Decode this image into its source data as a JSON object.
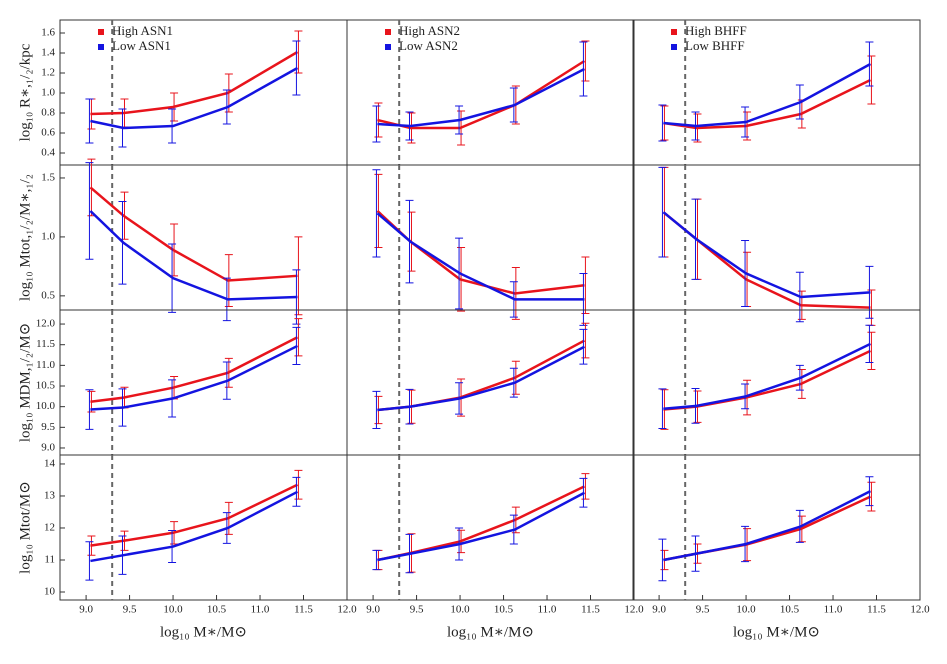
{
  "chart_data": [
    {
      "type": "line",
      "legend": "upper left",
      "xlim": [
        8.7,
        12.0
      ],
      "ylim": [
        0.28,
        1.73
      ],
      "vline": 9.3,
      "ylabel": "log₁₀ R∗,₁/₂/kpc",
      "yticks": [
        0.4,
        0.6,
        0.8,
        {
          "value": 1,
          "label": "1.0"
        },
        1.2,
        1.4,
        1.6
      ],
      "x": [
        9.05,
        9.43,
        10.0,
        10.63,
        11.43
      ],
      "series": [
        {
          "name": "High ASN1",
          "color": "#e8141c",
          "values": [
            0.79,
            0.8,
            0.86,
            1.0,
            1.41
          ],
          "errors": [
            0.15,
            0.14,
            0.14,
            0.19,
            0.21
          ]
        },
        {
          "name": "Low ASN1",
          "color": "#1414e0",
          "values": [
            0.72,
            0.65,
            0.67,
            0.86,
            1.25
          ],
          "errors": [
            0.22,
            0.19,
            0.17,
            0.17,
            0.27
          ]
        }
      ]
    },
    {
      "type": "line",
      "legend": "upper left",
      "xlim": [
        8.7,
        12.0
      ],
      "ylim": [
        0.28,
        1.73
      ],
      "vline": 9.3,
      "x": [
        9.05,
        9.43,
        10.0,
        10.63,
        11.43
      ],
      "series": [
        {
          "name": "High ASN2",
          "color": "#e8141c",
          "values": [
            0.73,
            0.65,
            0.65,
            0.88,
            1.32
          ],
          "errors": [
            0.17,
            0.15,
            0.17,
            0.19,
            0.2
          ]
        },
        {
          "name": "Low ASN2",
          "color": "#1414e0",
          "values": [
            0.69,
            0.67,
            0.73,
            0.88,
            1.24
          ],
          "errors": [
            0.18,
            0.14,
            0.14,
            0.17,
            0.27
          ]
        }
      ]
    },
    {
      "type": "line",
      "legend": "upper left",
      "xlim": [
        8.7,
        12.0
      ],
      "ylim": [
        0.28,
        1.73
      ],
      "vline": 9.3,
      "x": [
        9.05,
        9.43,
        10.0,
        10.63,
        11.43
      ],
      "series": [
        {
          "name": "High BHFF",
          "color": "#e8141c",
          "values": [
            0.7,
            0.65,
            0.67,
            0.79,
            1.13
          ],
          "errors": [
            0.17,
            0.14,
            0.14,
            0.14,
            0.24
          ]
        },
        {
          "name": "Low BHFF",
          "color": "#1414e0",
          "values": [
            0.7,
            0.67,
            0.71,
            0.91,
            1.29
          ],
          "errors": [
            0.18,
            0.14,
            0.15,
            0.17,
            0.22
          ]
        }
      ]
    },
    {
      "type": "line",
      "xlim": [
        8.7,
        12.0
      ],
      "ylim": [
        0.38,
        1.61
      ],
      "vline": 9.3,
      "ylabel": "log₁₀ Mtot,₁/₂/M∗,₁/₂",
      "yticks": [
        0.5,
        {
          "value": 1,
          "label": "1.0"
        },
        1.5
      ],
      "x": [
        9.05,
        9.43,
        10.0,
        10.63,
        11.43
      ],
      "series": [
        {
          "color": "#e8141c",
          "values": [
            1.42,
            1.18,
            0.89,
            0.63,
            0.67
          ],
          "errors": [
            0.24,
            0.2,
            0.22,
            0.22,
            0.33
          ]
        },
        {
          "color": "#1414e0",
          "values": [
            1.22,
            0.95,
            0.65,
            0.47,
            0.49
          ],
          "errors": [
            0.41,
            0.35,
            0.29,
            0.18,
            0.23
          ]
        }
      ]
    },
    {
      "type": "line",
      "xlim": [
        8.7,
        12.0
      ],
      "ylim": [
        0.38,
        1.61
      ],
      "vline": 9.3,
      "x": [
        9.05,
        9.43,
        10.0,
        10.63,
        11.43
      ],
      "series": [
        {
          "color": "#e8141c",
          "values": [
            1.22,
            0.96,
            0.64,
            0.52,
            0.59
          ],
          "errors": [
            0.31,
            0.25,
            0.27,
            0.22,
            0.24
          ]
        },
        {
          "color": "#1414e0",
          "values": [
            1.2,
            0.96,
            0.69,
            0.47,
            0.47
          ],
          "errors": [
            0.37,
            0.35,
            0.3,
            0.15,
            0.22
          ]
        }
      ]
    },
    {
      "type": "line",
      "xlim": [
        8.7,
        12.0
      ],
      "ylim": [
        0.38,
        1.61
      ],
      "vline": 9.3,
      "x": [
        9.05,
        9.43,
        10.0,
        10.63,
        11.43
      ],
      "series": [
        {
          "color": "#e8141c",
          "values": [
            1.21,
            0.98,
            0.64,
            0.42,
            0.4
          ],
          "errors": [
            0.38,
            0.34,
            0.23,
            0.12,
            0.15
          ]
        },
        {
          "color": "#1414e0",
          "values": [
            1.21,
            0.98,
            0.69,
            0.49,
            0.53
          ],
          "errors": [
            0.38,
            0.34,
            0.28,
            0.21,
            0.22
          ]
        }
      ]
    },
    {
      "type": "line",
      "xlim": [
        8.7,
        12.0
      ],
      "ylim": [
        8.83,
        12.34
      ],
      "vline": 9.3,
      "ylabel": "log₁₀ MDM,₁/₂/M⊙",
      "yticks": [
        {
          "value": 9,
          "label": "9.0"
        },
        9.5,
        {
          "value": 10,
          "label": "10.0"
        },
        10.5,
        {
          "value": 11,
          "label": "11.0"
        },
        11.5,
        {
          "value": 12,
          "label": "12.0"
        }
      ],
      "x": [
        9.05,
        9.43,
        10.0,
        10.63,
        11.43
      ],
      "series": [
        {
          "color": "#e8141c",
          "values": [
            10.12,
            10.22,
            10.46,
            10.82,
            11.68
          ],
          "errors": [
            0.25,
            0.25,
            0.27,
            0.35,
            0.45
          ]
        },
        {
          "color": "#1414e0",
          "values": [
            9.93,
            9.98,
            10.2,
            10.63,
            11.47
          ],
          "errors": [
            0.48,
            0.45,
            0.45,
            0.45,
            0.45
          ]
        }
      ]
    },
    {
      "type": "line",
      "xlim": [
        8.7,
        12.0
      ],
      "ylim": [
        8.83,
        12.34
      ],
      "vline": 9.3,
      "x": [
        9.05,
        9.43,
        10.0,
        10.63,
        11.43
      ],
      "series": [
        {
          "color": "#e8141c",
          "values": [
            9.92,
            10.0,
            10.22,
            10.7,
            11.6
          ],
          "errors": [
            0.33,
            0.4,
            0.45,
            0.4,
            0.42
          ]
        },
        {
          "color": "#1414e0",
          "values": [
            9.92,
            10.0,
            10.2,
            10.58,
            11.45
          ],
          "errors": [
            0.45,
            0.42,
            0.38,
            0.35,
            0.42
          ]
        }
      ]
    },
    {
      "type": "line",
      "xlim": [
        8.7,
        12.0
      ],
      "ylim": [
        8.83,
        12.34
      ],
      "vline": 9.3,
      "x": [
        9.05,
        9.43,
        10.0,
        10.63,
        11.43
      ],
      "series": [
        {
          "color": "#e8141c",
          "values": [
            9.93,
            10.0,
            10.22,
            10.55,
            11.35
          ],
          "errors": [
            0.48,
            0.38,
            0.42,
            0.35,
            0.45
          ]
        },
        {
          "color": "#1414e0",
          "values": [
            9.95,
            10.02,
            10.25,
            10.7,
            11.52
          ],
          "errors": [
            0.48,
            0.42,
            0.3,
            0.3,
            0.45
          ]
        }
      ]
    },
    {
      "type": "line",
      "xlim": [
        8.7,
        12.0
      ],
      "ylim": [
        9.75,
        14.28
      ],
      "vline": 9.3,
      "ylabel": "log₁₀ Mtot/M⊙",
      "yticks": [
        10,
        11,
        12,
        13,
        14
      ],
      "xlabel": "log₁₀ M∗/M⊙",
      "xticks": [
        {
          "value": 9,
          "label": "9.0"
        },
        9.5,
        {
          "value": 10,
          "label": "10.0"
        },
        10.5,
        {
          "value": 11,
          "label": "11.0"
        },
        11.5,
        {
          "value": 12,
          "label": "12.0"
        }
      ],
      "x": [
        9.05,
        9.43,
        10.0,
        10.63,
        11.43
      ],
      "series": [
        {
          "color": "#e8141c",
          "values": [
            11.45,
            11.6,
            11.85,
            12.3,
            13.35
          ],
          "errors": [
            0.3,
            0.3,
            0.35,
            0.5,
            0.45
          ]
        },
        {
          "color": "#1414e0",
          "values": [
            10.97,
            11.15,
            11.42,
            12.0,
            13.13
          ],
          "errors": [
            0.6,
            0.6,
            0.5,
            0.48,
            0.45
          ]
        }
      ]
    },
    {
      "type": "line",
      "xlim": [
        8.7,
        12.0
      ],
      "ylim": [
        9.75,
        14.28
      ],
      "vline": 9.3,
      "xlabel": "log₁₀ M∗/M⊙",
      "xticks": [
        {
          "value": 9,
          "label": "9.0"
        },
        9.5,
        {
          "value": 10,
          "label": "10.0"
        },
        10.5,
        {
          "value": 11,
          "label": "11.0"
        },
        11.5,
        {
          "value": 12,
          "label": "12.0"
        }
      ],
      "x": [
        9.05,
        9.43,
        10.0,
        10.63,
        11.43
      ],
      "series": [
        {
          "color": "#e8141c",
          "values": [
            11.0,
            11.22,
            11.58,
            12.25,
            13.3
          ],
          "errors": [
            0.3,
            0.6,
            0.35,
            0.4,
            0.4
          ]
        },
        {
          "color": "#1414e0",
          "values": [
            11.0,
            11.2,
            11.5,
            11.95,
            13.1
          ],
          "errors": [
            0.3,
            0.6,
            0.5,
            0.45,
            0.45
          ]
        }
      ]
    },
    {
      "type": "line",
      "xlim": [
        8.7,
        12.0
      ],
      "ylim": [
        9.75,
        14.28
      ],
      "vline": 9.3,
      "xlabel": "log₁₀ M∗/M⊙",
      "xticks": [
        {
          "value": 9,
          "label": "9.0"
        },
        9.5,
        {
          "value": 10,
          "label": "10.0"
        },
        10.5,
        {
          "value": 11,
          "label": "11.0"
        },
        11.5,
        {
          "value": 12,
          "label": "12.0"
        }
      ],
      "x": [
        9.05,
        9.43,
        10.0,
        10.63,
        11.43
      ],
      "series": [
        {
          "color": "#e8141c",
          "values": [
            11.0,
            11.2,
            11.48,
            11.97,
            12.98
          ],
          "errors": [
            0.3,
            0.3,
            0.5,
            0.4,
            0.45
          ]
        },
        {
          "color": "#1414e0",
          "values": [
            11.0,
            11.2,
            11.5,
            12.05,
            13.15
          ],
          "errors": [
            0.65,
            0.55,
            0.55,
            0.5,
            0.45
          ]
        }
      ]
    }
  ]
}
